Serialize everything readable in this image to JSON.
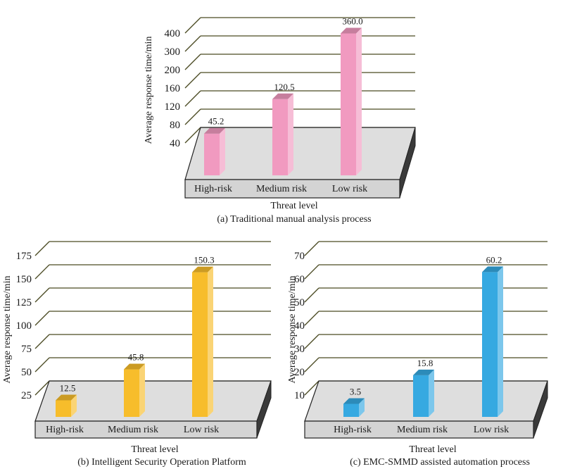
{
  "chart_data": [
    {
      "type": "bar",
      "caption": "(a) Traditional manual analysis process",
      "xlabel": "Threat level",
      "ylabel": "Average response time/min",
      "categories": [
        "High-risk",
        "Medium risk",
        "Low risk"
      ],
      "values": [
        45.2,
        120.5,
        360.0
      ],
      "value_labels": [
        "45.2",
        "120.5",
        "360.0"
      ],
      "yticks": [
        "40",
        "80",
        "120",
        "160",
        "200",
        "300",
        "400"
      ],
      "grid": true,
      "color": "#f19ac0"
    },
    {
      "type": "bar",
      "caption": "(b) Intelligent Security Operation Platform",
      "xlabel": "Threat level",
      "ylabel": "Average response time/min",
      "categories": [
        "High-risk",
        "Medium risk",
        "Low risk"
      ],
      "values": [
        12.5,
        45.8,
        150.3
      ],
      "value_labels": [
        "12.5",
        "45.8",
        "150.3"
      ],
      "yticks": [
        "25",
        "50",
        "75",
        "100",
        "125",
        "150",
        "175"
      ],
      "ylim": [
        25,
        175
      ],
      "grid": true,
      "color": "#f7bd2b"
    },
    {
      "type": "bar",
      "caption": "(c) EMC-SMMD assisted automation process",
      "xlabel": "Threat level",
      "ylabel": "Average response time/min",
      "categories": [
        "High-risk",
        "Medium risk",
        "Low risk"
      ],
      "values": [
        3.5,
        15.8,
        60.2
      ],
      "value_labels": [
        "3.5",
        "15.8",
        "60.2"
      ],
      "yticks": [
        "10",
        "20",
        "30",
        "40",
        "50",
        "60",
        "70"
      ],
      "ylim": [
        10,
        70
      ],
      "grid": true,
      "color": "#36a9e1"
    }
  ]
}
